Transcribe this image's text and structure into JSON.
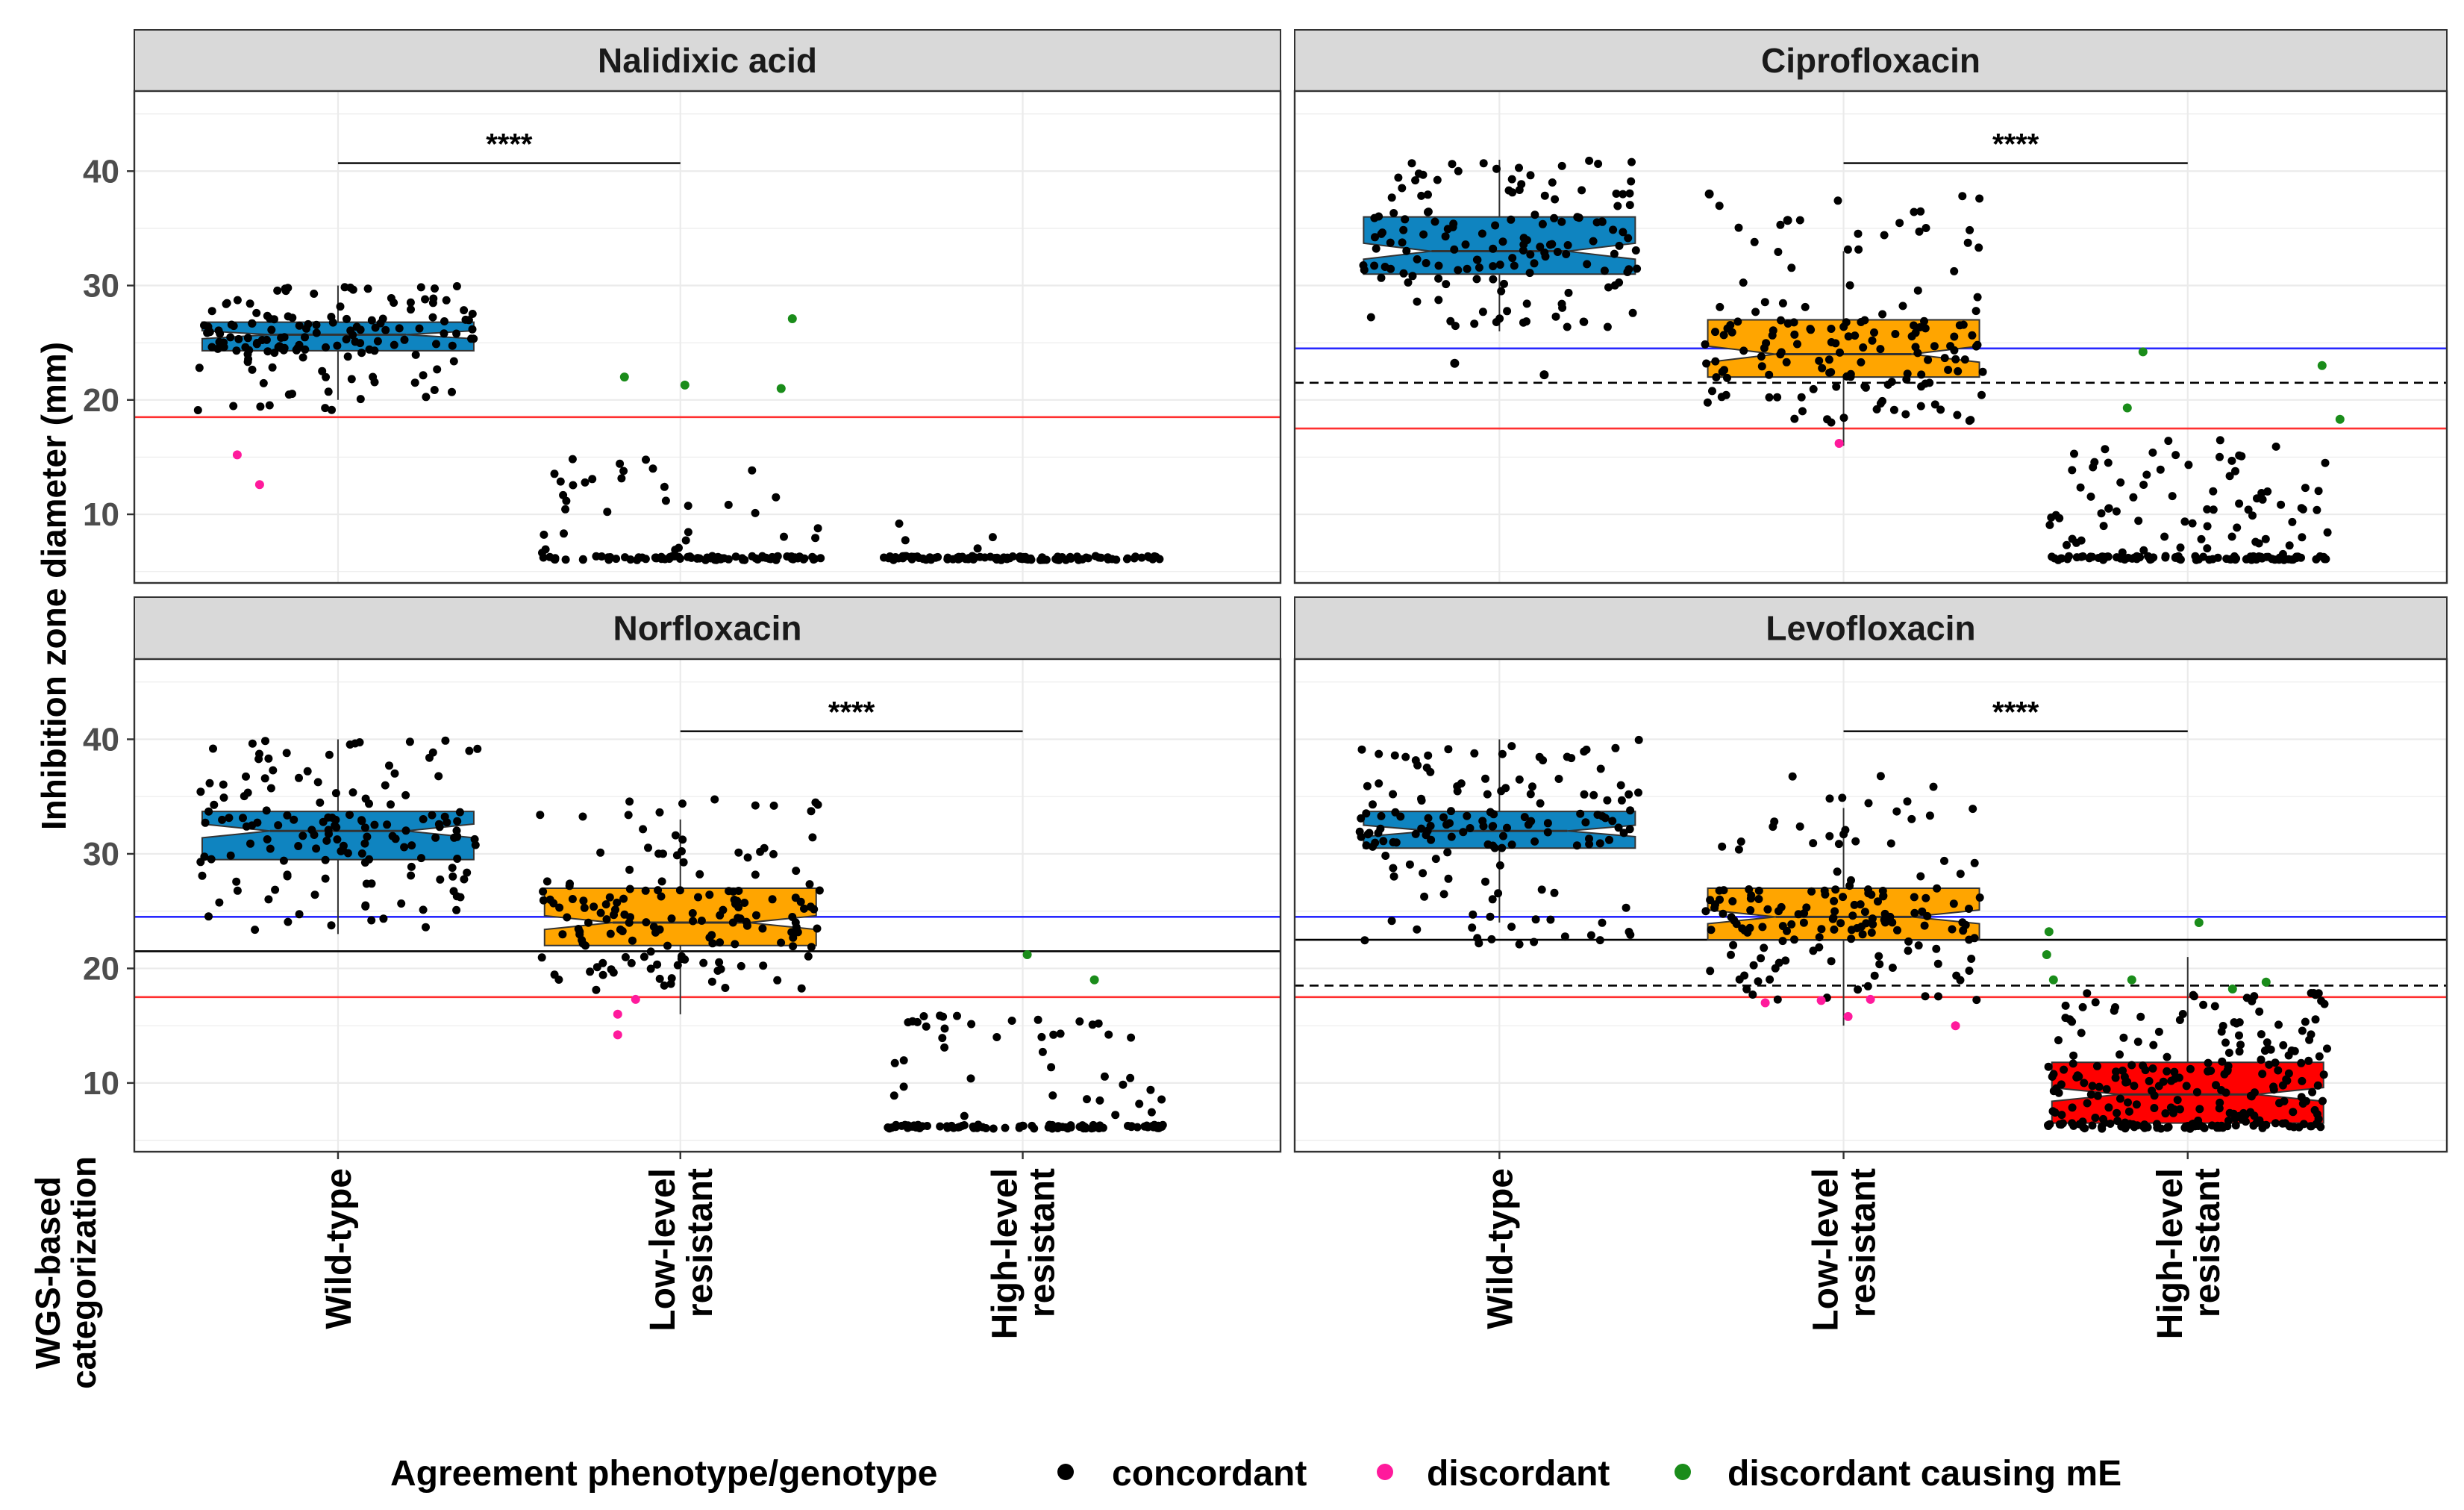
{
  "chart_data": {
    "type": "box",
    "y_axis": {
      "label": "Inhibition zone diameter (mm)",
      "range": [
        4,
        47
      ],
      "ticks": [
        10,
        20,
        30,
        40
      ],
      "tick_labels": [
        "10",
        "20",
        "30",
        "40"
      ]
    },
    "x_axis": {
      "label": "WGS-based categorization",
      "label_lines": [
        "WGS-based",
        "categorization"
      ],
      "categories": [
        {
          "key": "wt",
          "lines": [
            "Wild-type"
          ]
        },
        {
          "key": "low",
          "lines": [
            "Low-level",
            "resistant"
          ]
        },
        {
          "key": "high",
          "lines": [
            "High-level",
            "resistant"
          ]
        }
      ]
    },
    "legend": {
      "title": "Agreement phenotype/genotype",
      "position": "bottom",
      "items": [
        {
          "label": "concordant",
          "color": "#000000"
        },
        {
          "label": "discordant",
          "color": "#ff1a9c"
        },
        {
          "label": "discordant causing mE",
          "color": "#1a8c1a"
        }
      ]
    },
    "colors": {
      "wt": "#0f84c0",
      "low": "#ffa500",
      "high": "#ff0000",
      "blue_line": "#2828ff",
      "red_line": "#ff3030",
      "black_line": "#000000",
      "concordant": "#000000",
      "discordant": "#ff1a9c",
      "mE": "#1a8c1a",
      "strip_bg": "#d9d9d9",
      "grid": "#ebebeb"
    },
    "panels": [
      {
        "name": "Nalidixic acid",
        "reference_lines": [
          {
            "y": 18.5,
            "color": "red",
            "style": "solid"
          }
        ],
        "significance": {
          "from": "wt",
          "to": "low",
          "y": 40.7,
          "label": "****"
        },
        "groups": [
          {
            "cat": "wt",
            "n": 150,
            "q1": 24.3,
            "median": 25.7,
            "q3": 26.8,
            "notch": 0.35,
            "wlo": 20,
            "whi": 30,
            "min": 19,
            "max": 30,
            "fill": "wt",
            "boxed": true,
            "extra": [
              {
                "y": 15.2,
                "x": -0.45,
                "t": "discordant"
              },
              {
                "y": 12.6,
                "x": -0.35,
                "t": "discordant"
              }
            ]
          },
          {
            "cat": "low",
            "n": 120,
            "dist": "floor",
            "floor": 6,
            "min": 6,
            "max": 15,
            "upper": 15,
            "frac_floor": 0.75,
            "boxed": false,
            "extra": [
              {
                "y": 22.0,
                "x": -0.25,
                "t": "mE"
              },
              {
                "y": 21.3,
                "x": 0.02,
                "t": "mE"
              },
              {
                "y": 21.0,
                "x": 0.45,
                "t": "mE"
              },
              {
                "y": 27.1,
                "x": 0.5,
                "t": "mE"
              }
            ]
          },
          {
            "cat": "high",
            "n": 110,
            "dist": "floor",
            "floor": 6,
            "min": 6,
            "max": 10,
            "upper": 9.5,
            "frac_floor": 0.95,
            "boxed": false,
            "extra": []
          }
        ]
      },
      {
        "name": "Ciprofloxacin",
        "reference_lines": [
          {
            "y": 24.5,
            "color": "blue",
            "style": "solid"
          },
          {
            "y": 21.5,
            "color": "black",
            "style": "dashed"
          },
          {
            "y": 17.5,
            "color": "red",
            "style": "solid"
          }
        ],
        "significance": {
          "from": "low",
          "to": "high",
          "y": 40.7,
          "label": "****"
        },
        "groups": [
          {
            "cat": "wt",
            "n": 150,
            "q1": 31.0,
            "median": 33.0,
            "q3": 36.0,
            "notch": 0.7,
            "wlo": 26,
            "whi": 41,
            "min": 26,
            "max": 41,
            "fill": "wt",
            "boxed": true,
            "extra": [
              {
                "y": 23.2,
                "x": -0.2,
                "t": "concordant"
              },
              {
                "y": 22.2,
                "x": 0.2,
                "t": "concordant"
              }
            ]
          },
          {
            "cat": "low",
            "n": 150,
            "q1": 22.0,
            "median": 24.0,
            "q3": 27.0,
            "notch": 0.7,
            "wlo": 16,
            "whi": 33,
            "min": 18,
            "max": 38,
            "fill": "low",
            "boxed": true,
            "extra": [
              {
                "y": 16.2,
                "x": -0.02,
                "t": "discordant"
              },
              {
                "y": 38.0,
                "x": -0.6,
                "t": "concordant"
              },
              {
                "y": 35.7,
                "x": -0.25,
                "t": "concordant"
              }
            ]
          },
          {
            "cat": "high",
            "n": 170,
            "dist": "floor",
            "floor": 6,
            "min": 6,
            "max": 17,
            "upper": 16.5,
            "frac_floor": 0.5,
            "boxed": false,
            "extra": [
              {
                "y": 24.2,
                "x": -0.2,
                "t": "mE"
              },
              {
                "y": 19.3,
                "x": -0.27,
                "t": "mE"
              },
              {
                "y": 23.0,
                "x": 0.6,
                "t": "mE"
              },
              {
                "y": 18.3,
                "x": 0.68,
                "t": "mE"
              }
            ]
          }
        ]
      },
      {
        "name": "Norfloxacin",
        "reference_lines": [
          {
            "y": 24.5,
            "color": "blue",
            "style": "solid"
          },
          {
            "y": 21.5,
            "color": "black",
            "style": "solid"
          },
          {
            "y": 17.5,
            "color": "red",
            "style": "solid"
          }
        ],
        "significance": {
          "from": "low",
          "to": "high",
          "y": 40.7,
          "label": "****"
        },
        "groups": [
          {
            "cat": "wt",
            "n": 150,
            "q1": 29.5,
            "median": 32.0,
            "q3": 33.7,
            "notch": 0.6,
            "wlo": 23,
            "whi": 40,
            "min": 23,
            "max": 40,
            "fill": "wt",
            "boxed": true,
            "extra": []
          },
          {
            "cat": "low",
            "n": 160,
            "q1": 22.0,
            "median": 24.0,
            "q3": 27.0,
            "notch": 0.6,
            "wlo": 16,
            "whi": 33,
            "min": 18,
            "max": 35,
            "fill": "low",
            "boxed": true,
            "extra": [
              {
                "y": 16.0,
                "x": -0.28,
                "t": "discordant"
              },
              {
                "y": 14.2,
                "x": -0.28,
                "t": "discordant"
              },
              {
                "y": 17.3,
                "x": -0.2,
                "t": "discordant"
              }
            ]
          },
          {
            "cat": "high",
            "n": 130,
            "dist": "floor",
            "floor": 6,
            "min": 6,
            "max": 17,
            "upper": 16,
            "frac_floor": 0.7,
            "boxed": false,
            "extra": [
              {
                "y": 21.2,
                "x": 0.02,
                "t": "mE"
              },
              {
                "y": 19.0,
                "x": 0.32,
                "t": "mE"
              }
            ]
          }
        ]
      },
      {
        "name": "Levofloxacin",
        "reference_lines": [
          {
            "y": 24.5,
            "color": "blue",
            "style": "solid"
          },
          {
            "y": 22.5,
            "color": "black",
            "style": "solid"
          },
          {
            "y": 18.5,
            "color": "black",
            "style": "dashed"
          },
          {
            "y": 17.5,
            "color": "red",
            "style": "solid"
          }
        ],
        "significance": {
          "from": "low",
          "to": "high",
          "y": 40.7,
          "label": "****"
        },
        "groups": [
          {
            "cat": "wt",
            "n": 150,
            "q1": 30.5,
            "median": 32.0,
            "q3": 33.7,
            "notch": 0.5,
            "wlo": 24,
            "whi": 40,
            "min": 22,
            "max": 40,
            "fill": "wt",
            "boxed": true,
            "extra": []
          },
          {
            "cat": "low",
            "n": 160,
            "q1": 22.5,
            "median": 24.5,
            "q3": 27.0,
            "notch": 0.6,
            "wlo": 15,
            "whi": 34,
            "min": 17,
            "max": 37,
            "fill": "low",
            "boxed": true,
            "extra": [
              {
                "y": 17.0,
                "x": -0.35,
                "t": "discordant"
              },
              {
                "y": 17.2,
                "x": -0.1,
                "t": "discordant"
              },
              {
                "y": 15.8,
                "x": 0.02,
                "t": "discordant"
              },
              {
                "y": 17.3,
                "x": 0.12,
                "t": "discordant"
              },
              {
                "y": 15.0,
                "x": 0.5,
                "t": "discordant"
              }
            ]
          },
          {
            "cat": "high",
            "n": 260,
            "q1": 6.5,
            "median": 9.0,
            "q3": 11.8,
            "notch": 0.6,
            "wlo": 6,
            "whi": 21,
            "min": 6,
            "max": 18,
            "fill": "high",
            "boxed": true,
            "extra": [
              {
                "y": 23.2,
                "x": -0.62,
                "t": "mE"
              },
              {
                "y": 21.2,
                "x": -0.63,
                "t": "mE"
              },
              {
                "y": 19.0,
                "x": -0.6,
                "t": "mE"
              },
              {
                "y": 19.0,
                "x": -0.25,
                "t": "mE"
              },
              {
                "y": 24.0,
                "x": 0.05,
                "t": "mE"
              },
              {
                "y": 18.2,
                "x": 0.2,
                "t": "mE"
              },
              {
                "y": 18.8,
                "x": 0.35,
                "t": "mE"
              }
            ]
          }
        ]
      }
    ]
  }
}
